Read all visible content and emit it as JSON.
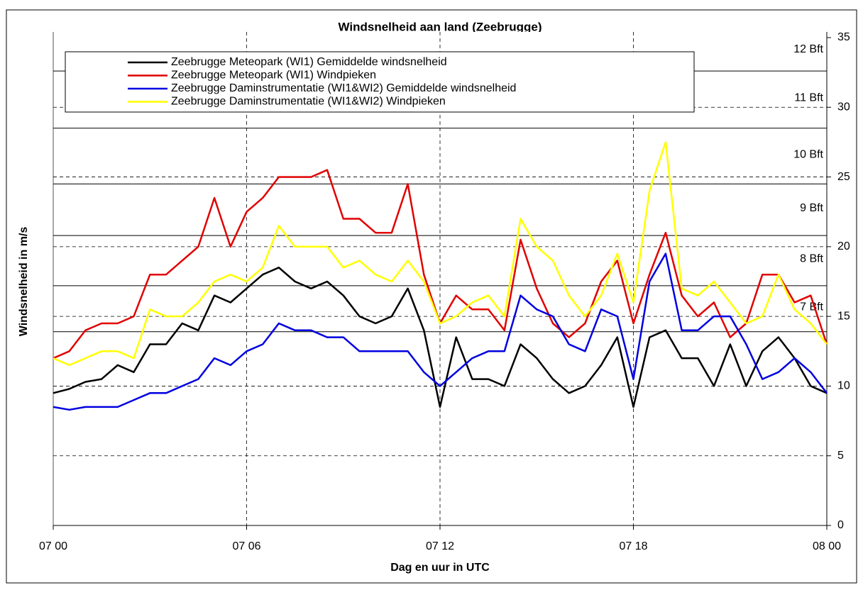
{
  "chart_data": {
    "type": "line",
    "title": "Windsnelheid aan land (Zeebrugge)",
    "x_label": "Dag en uur in UTC",
    "y_label": "Windsnelheid in m/s",
    "x": [
      0,
      0.5,
      1,
      1.5,
      2,
      2.5,
      3,
      3.5,
      4,
      4.5,
      5,
      5.5,
      6,
      6.5,
      7,
      7.5,
      8,
      8.5,
      9,
      9.5,
      10,
      10.5,
      11,
      11.5,
      12,
      12.5,
      13,
      13.5,
      14,
      14.5,
      15,
      15.5,
      16,
      16.5,
      17,
      17.5,
      18,
      18.5,
      19,
      19.5,
      20,
      20.5,
      21,
      21.5,
      22,
      22.5,
      23,
      23.5,
      24
    ],
    "series": [
      {
        "name": "Zeebrugge Meteopark (WI1) Gemiddelde windsnelheid",
        "color": "#000000",
        "values": [
          9.5,
          9.8,
          10.3,
          10.5,
          11.5,
          11,
          13,
          13,
          14.5,
          14,
          16.5,
          16,
          17,
          18,
          18.5,
          17.5,
          17,
          17.5,
          16.5,
          15,
          14.5,
          15,
          17,
          14,
          8.5,
          13.5,
          10.5,
          10.5,
          10,
          13,
          12,
          10.5,
          9.5,
          10,
          11.5,
          13.5,
          8.5,
          13.5,
          14,
          12,
          12,
          10,
          13,
          10,
          12.5,
          13.5,
          12,
          10,
          9.5
        ]
      },
      {
        "name": "Zeebrugge Meteopark (WI1) Windpieken",
        "color": "#e00000",
        "values": [
          12,
          12.5,
          14,
          14.5,
          14.5,
          15,
          18,
          18,
          19,
          20,
          23.5,
          20,
          22.5,
          23.5,
          25,
          25,
          25,
          25.5,
          22,
          22,
          21,
          21,
          24.5,
          18,
          14.5,
          16.5,
          15.5,
          15.5,
          14,
          20.5,
          17,
          14.5,
          13.5,
          14.5,
          17.5,
          19,
          14.5,
          18,
          21,
          16.5,
          15,
          16,
          13.5,
          14.5,
          18,
          18,
          16,
          16.5,
          13
        ]
      },
      {
        "name": "Zeebrugge Daminstrumentatie (WI1&WI2) Gemiddelde windsnelheid",
        "color": "#0000e0",
        "values": [
          8.5,
          8.3,
          8.5,
          8.5,
          8.5,
          9,
          9.5,
          9.5,
          10,
          10.5,
          12,
          11.5,
          12.5,
          13,
          14.5,
          14,
          14,
          13.5,
          13.5,
          12.5,
          12.5,
          12.5,
          12.5,
          11,
          10,
          11,
          12,
          12.5,
          12.5,
          16.5,
          15.5,
          15,
          13,
          12.5,
          15.5,
          15,
          10.5,
          17.5,
          19.5,
          14,
          14,
          15,
          15,
          13,
          10.5,
          11,
          12,
          11,
          9.5
        ]
      },
      {
        "name": "Zeebrugge Daminstrumentatie (WI1&WI2) Windpieken",
        "color": "#ffff00",
        "values": [
          12,
          11.5,
          12,
          12.5,
          12.5,
          12,
          15.5,
          15,
          15,
          16,
          17.5,
          18,
          17.5,
          18.5,
          21.5,
          20,
          20,
          20,
          18.5,
          19,
          18,
          17.5,
          19,
          17.5,
          14.5,
          15,
          16,
          16.5,
          15,
          22,
          20,
          19,
          16.5,
          15,
          16.5,
          19.5,
          16,
          24,
          27.5,
          17,
          16.5,
          17.5,
          16,
          14.5,
          15,
          18,
          15.5,
          14.5,
          13
        ]
      }
    ],
    "xlim": [
      0,
      24
    ],
    "xticks": [
      {
        "value": 0,
        "label": "07 00"
      },
      {
        "value": 6,
        "label": "07 06"
      },
      {
        "value": 12,
        "label": "07 12"
      },
      {
        "value": 18,
        "label": "07 18"
      },
      {
        "value": 24,
        "label": "08 00"
      }
    ],
    "ylim": [
      0,
      35
    ],
    "yticks": [
      0,
      5,
      10,
      15,
      20,
      25,
      30,
      35
    ],
    "grid": true,
    "bft_levels": [
      {
        "threshold": 13.9,
        "label": "7 Bft"
      },
      {
        "threshold": 17.2,
        "label": "8 Bft"
      },
      {
        "threshold": 20.8,
        "label": "9 Bft"
      },
      {
        "threshold": 24.5,
        "label": "10 Bft"
      },
      {
        "threshold": 28.5,
        "label": "11 Bft"
      },
      {
        "threshold": 32.6,
        "label": "12 Bft"
      }
    ]
  }
}
